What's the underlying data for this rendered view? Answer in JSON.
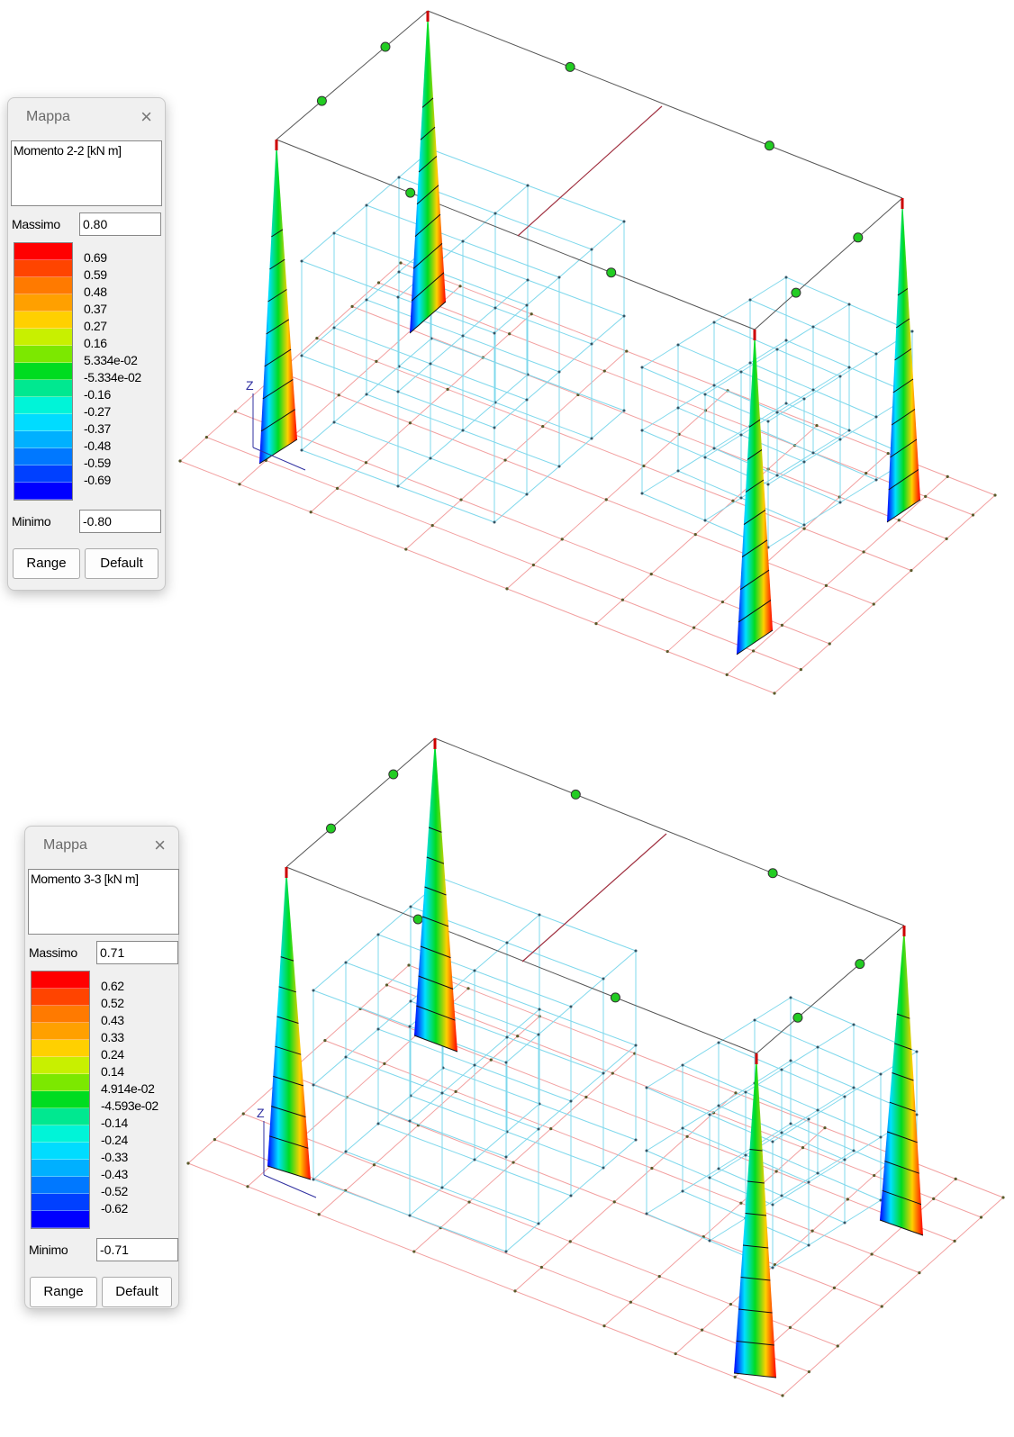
{
  "panels": [
    {
      "title": "Mappa",
      "close": "×",
      "quantity": "Momento 2-2 [kN  m]",
      "max_label": "Massimo",
      "max_value": "0.80",
      "legend_labels": [
        "0.69",
        "0.59",
        "0.48",
        "0.37",
        "0.27",
        "0.16",
        "5.334e-02",
        "-5.334e-02",
        "-0.16",
        "-0.27",
        "-0.37",
        "-0.48",
        "-0.59",
        "-0.69"
      ],
      "legend_colors": [
        "#ff0000",
        "#ff4400",
        "#ff7a00",
        "#ffa000",
        "#ffd000",
        "#c8f000",
        "#7ce800",
        "#00dc20",
        "#00e890",
        "#00f4d8",
        "#00dcff",
        "#00b0ff",
        "#0078ff",
        "#0040ff",
        "#0000ff"
      ],
      "min_label": "Minimo",
      "min_value": "-0.80",
      "buttons": [
        "Range",
        "Default"
      ]
    },
    {
      "title": "Mappa",
      "close": "×",
      "quantity": "Momento 3-3 [kN  m]",
      "max_label": "Massimo",
      "max_value": "0.71",
      "legend_labels": [
        "0.62",
        "0.52",
        "0.43",
        "0.33",
        "0.24",
        "0.14",
        "4.914e-02",
        "-4.593e-02",
        "-0.14",
        "-0.24",
        "-0.33",
        "-0.43",
        "-0.52",
        "-0.62"
      ],
      "legend_colors": [
        "#ff0000",
        "#ff4400",
        "#ff7a00",
        "#ffa000",
        "#ffd000",
        "#c8f000",
        "#7ce800",
        "#00dc20",
        "#00e890",
        "#00f4d8",
        "#00dcff",
        "#00b0ff",
        "#0078ff",
        "#0040ff",
        "#0000ff"
      ],
      "min_label": "Minimo",
      "min_value": "-0.71",
      "buttons": [
        "Range",
        "Default"
      ]
    }
  ],
  "views": [
    {
      "axis_label": "Z"
    },
    {
      "axis_label": "Z"
    }
  ]
}
